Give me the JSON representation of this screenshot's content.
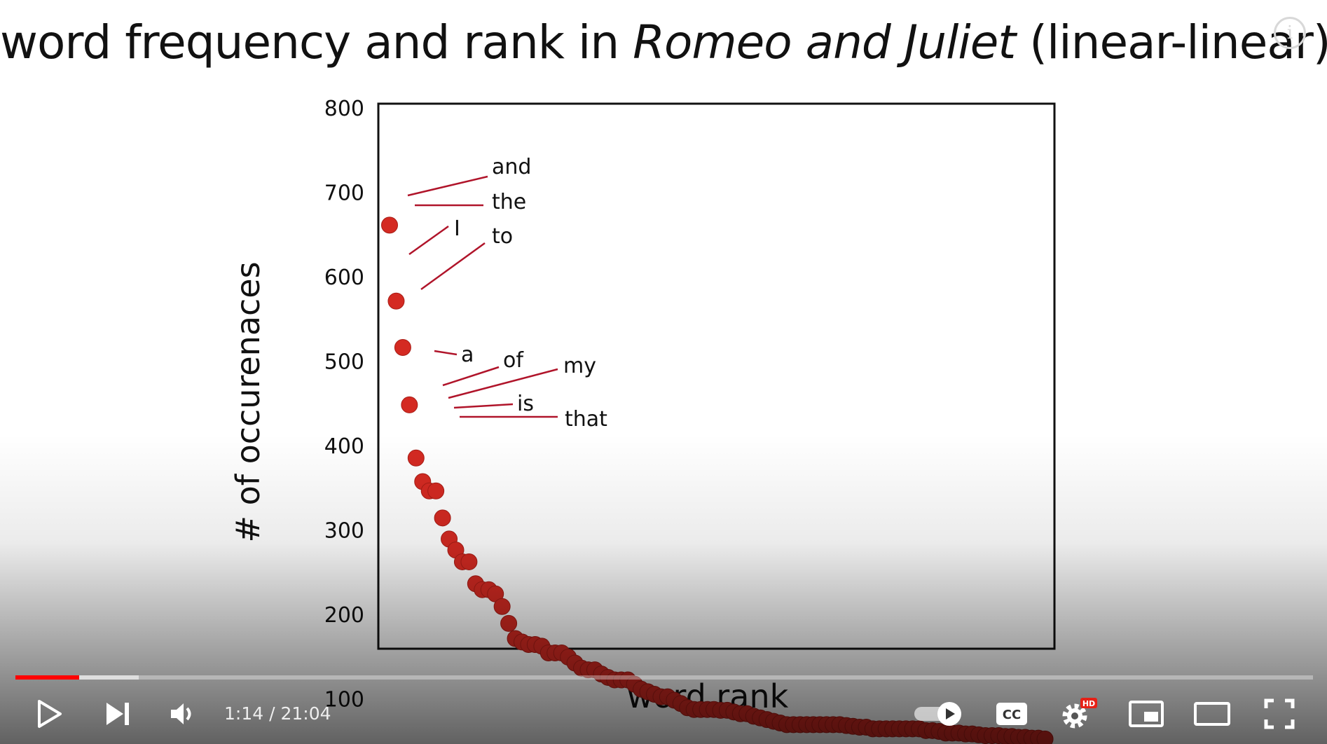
{
  "video": {
    "title_prefix": "word frequency and rank in ",
    "title_italic": "Romeo and Juliet",
    "title_suffix": " (linear-linear)",
    "info_icon": "i",
    "time_display": "1:14 / 21:04",
    "progress_played_fraction": 0.049,
    "progress_buffered_fraction": 0.095,
    "accent_color": "#ff0000",
    "hd_badge": "HD",
    "cc_label": "CC",
    "controls": [
      "play-icon",
      "next-icon",
      "volume-icon",
      "autoplay-toggle",
      "captions-icon",
      "settings-icon",
      "miniplayer-icon",
      "theater-icon",
      "fullscreen-icon"
    ]
  },
  "chart_data": {
    "type": "scatter",
    "xlabel": "word rank",
    "ylabel": "# of occurenaces",
    "ylim": [
      0,
      810
    ],
    "yticks": [
      800,
      700,
      600,
      500,
      400,
      300,
      200,
      100
    ],
    "x_tick_labels": [],
    "grid": false,
    "point_color": "#d42a22",
    "line_color": "#b0142a",
    "series": [
      {
        "x": [
          1,
          2,
          3,
          4,
          5,
          6,
          7,
          8,
          9,
          10,
          11,
          12,
          13,
          14,
          15,
          16,
          17,
          18,
          19,
          20,
          21,
          22,
          23,
          24,
          25,
          26,
          27,
          28,
          29,
          30,
          31,
          32,
          33,
          34,
          35,
          36,
          37,
          38,
          39,
          40,
          41,
          42,
          43,
          44,
          45,
          46,
          47,
          48,
          49,
          50,
          51,
          52,
          53,
          54,
          55,
          56,
          57,
          58,
          59,
          60,
          61,
          62,
          63,
          64,
          65,
          66,
          67,
          68,
          69,
          70,
          71,
          72,
          73,
          74,
          75,
          76,
          77,
          78,
          79,
          80,
          81,
          82,
          83,
          84,
          85,
          86,
          87,
          88,
          89,
          90,
          91,
          92,
          93,
          94,
          95,
          96,
          97,
          98,
          99,
          100
        ],
        "y": [
          662,
          572,
          517,
          449,
          386,
          358,
          347,
          347,
          315,
          290,
          277,
          263,
          263,
          237,
          230,
          230,
          225,
          210,
          190,
          172,
          168,
          165,
          165,
          163,
          155,
          155,
          155,
          150,
          143,
          137,
          135,
          135,
          130,
          126,
          123,
          123,
          123,
          118,
          112,
          109,
          106,
          103,
          103,
          99,
          95,
          90,
          88,
          88,
          88,
          88,
          87,
          87,
          85,
          83,
          83,
          80,
          78,
          76,
          74,
          72,
          70,
          70,
          70,
          70,
          70,
          70,
          70,
          70,
          70,
          69,
          68,
          67,
          67,
          65,
          65,
          65,
          65,
          65,
          65,
          65,
          65,
          63,
          63,
          62,
          60,
          60,
          60,
          59,
          59,
          58,
          57,
          57,
          57,
          56,
          56,
          55,
          55,
          54,
          54,
          53
        ]
      }
    ],
    "annotations": [
      {
        "word": "and",
        "rank": 1
      },
      {
        "word": "the",
        "rank": 1
      },
      {
        "word": "I",
        "rank": 2
      },
      {
        "word": "to",
        "rank": 3
      },
      {
        "word": "a",
        "rank": 4
      },
      {
        "word": "of",
        "rank": 5
      },
      {
        "word": "my",
        "rank": 6
      },
      {
        "word": "is",
        "rank": 7
      },
      {
        "word": "that",
        "rank": 8
      }
    ]
  }
}
